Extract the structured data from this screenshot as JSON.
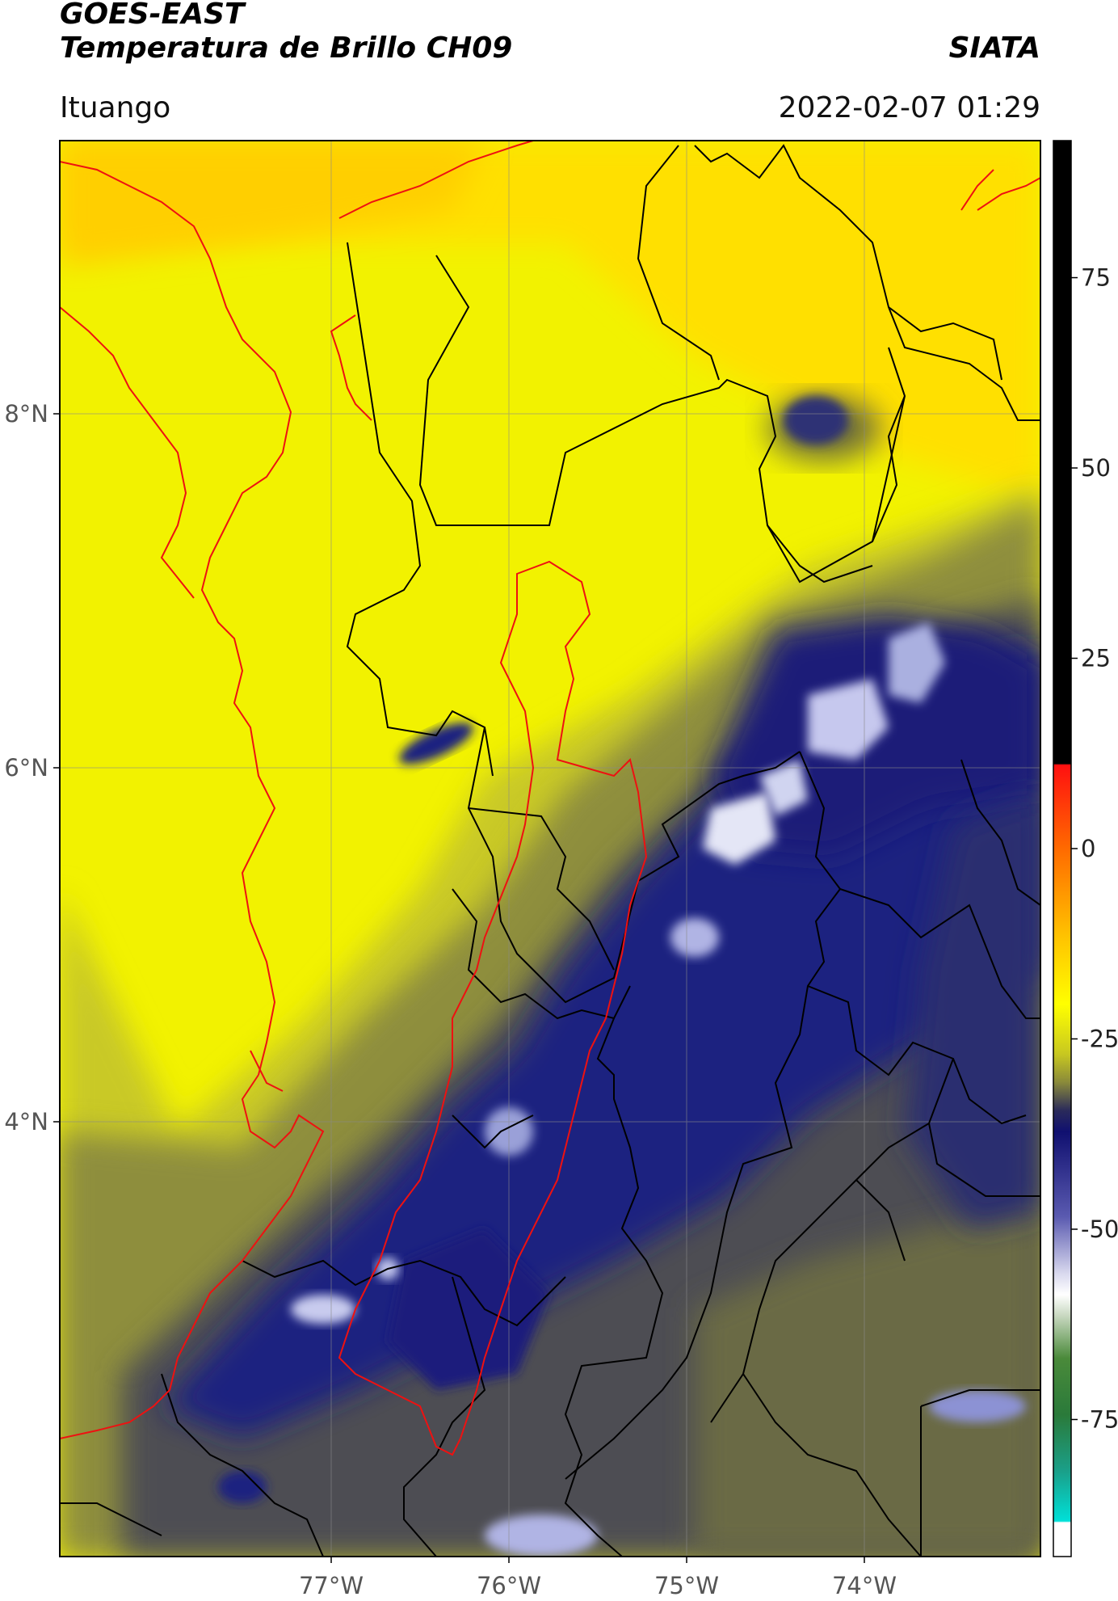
{
  "header": {
    "title_line1": "GOES-EAST",
    "title_line2": "Temperatura de Brillo CH09",
    "brand": "SIATA",
    "location": "Ituango",
    "timestamp": "2022-02-07 01:29"
  },
  "map": {
    "lat_ticks": [
      {
        "value": 8,
        "label": "8°N"
      },
      {
        "value": 6,
        "label": "6°N"
      },
      {
        "value": 4,
        "label": "4°N"
      }
    ],
    "lon_ticks": [
      {
        "value": -77,
        "label": "77°W"
      },
      {
        "value": -76,
        "label": "76°W"
      },
      {
        "value": -75,
        "label": "75°W"
      },
      {
        "value": -74,
        "label": "74°W"
      }
    ],
    "colors": {
      "warm": "#ffff00",
      "orange": "#ffd200",
      "olive": "#9a9a2a",
      "cold": "#1c1f7a",
      "coldest": "#d6daf2",
      "border_black": "#000000",
      "border_red": "#ee1111",
      "grid": "#888888"
    }
  },
  "colorbar": {
    "ticks": [
      {
        "value": 75,
        "label": "75"
      },
      {
        "value": 50,
        "label": "50"
      },
      {
        "value": 25,
        "label": "25"
      },
      {
        "value": 0,
        "label": "0"
      },
      {
        "value": -25,
        "label": "-25"
      },
      {
        "value": -50,
        "label": "-50"
      },
      {
        "value": -75,
        "label": "-75"
      }
    ],
    "range": [
      -93,
      93
    ]
  }
}
